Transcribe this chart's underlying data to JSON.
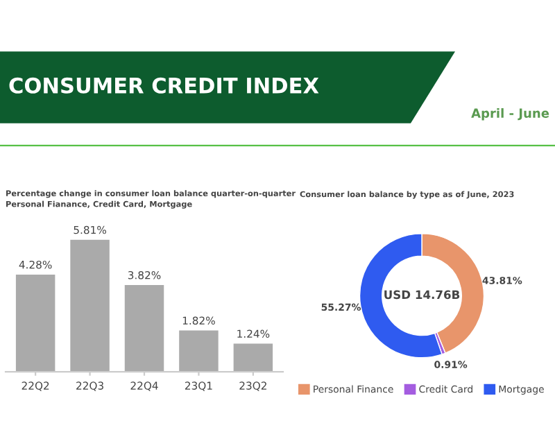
{
  "chart_data": [
    {
      "type": "bar",
      "title": "CONSUMER CREDIT INDEX",
      "subtitle": "Percentage change in consumer loan balance quarter-on-quarter\nPersonal Fianance, Credit Card, Mortgage",
      "annotations": [
        "April - June"
      ],
      "categories": [
        "22Q2",
        "22Q3",
        "22Q4",
        "23Q1",
        "23Q2"
      ],
      "values": [
        4.28,
        5.81,
        3.82,
        1.82,
        1.24
      ],
      "value_labels": [
        "4.28%",
        "5.81%",
        "3.82%",
        "1.82%",
        "1.24%"
      ],
      "color": "#aaaaaa",
      "grid": false
    },
    {
      "type": "donut",
      "title": "Consumer loan balance by type as of June, 2023",
      "annotations": [
        "USD 14.76B"
      ],
      "categories": [
        "Personal Finance",
        "Credit Card",
        "Mortgage"
      ],
      "values": [
        43.81,
        0.91,
        55.27
      ],
      "value_labels": [
        "43.81%",
        "0.91%",
        "55.27%"
      ],
      "colors": [
        "#e8956b",
        "#a45de0",
        "#2f5bf0"
      ],
      "legend": "bottom"
    }
  ]
}
